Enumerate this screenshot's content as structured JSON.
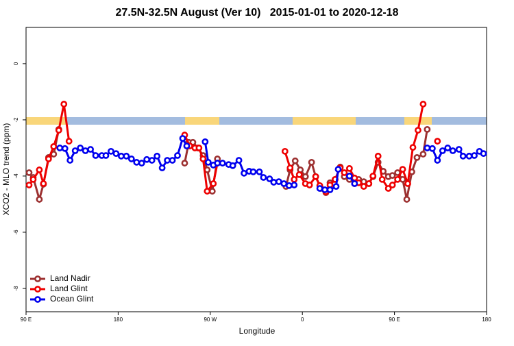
{
  "chart_data": {
    "type": "line",
    "title": "27.5N-32.5N August (Ver 10)   2015-01-01 to 2020-12-18",
    "x_label": "Longitude",
    "y_label": "XCO2 - MLO trend (ppm)",
    "xlim": [
      90,
      540
    ],
    "xticks": [
      {
        "value": 90,
        "label": "90 E"
      },
      180,
      {
        "value": 270,
        "label": "90 W"
      },
      {
        "value": 360,
        "label": "0"
      },
      {
        "value": 450,
        "label": "90 E"
      },
      {
        "value": 540,
        "label": "180"
      }
    ],
    "ylim": [
      -8.83,
      1.29
    ],
    "yticks": [
      -8,
      -6,
      -4,
      -2,
      0
    ],
    "legend": "bottom-left",
    "series": [
      {
        "name": "Land Nadir",
        "color": "#9c3030",
        "x": [
          93,
          97,
          103,
          107,
          112,
          117,
          122,
          null,
          245,
          249,
          253,
          258,
          263,
          267,
          272,
          277,
          null,
          344,
          348,
          353,
          358,
          363,
          369,
          373,
          378,
          383,
          387,
          392,
          397,
          401,
          406,
          411,
          415,
          420,
          425,
          429,
          434,
          439,
          444,
          448,
          453,
          458,
          462,
          467,
          472,
          478,
          482
        ],
        "values": [
          -3.88,
          -4.05,
          -4.83,
          -4.29,
          -3.34,
          -3.22,
          -2.34,
          null,
          -3.54,
          -2.8,
          -2.8,
          -3.0,
          -3.27,
          -3.78,
          -4.54,
          -3.39,
          null,
          -4.37,
          -3.78,
          -3.46,
          -3.78,
          -4.02,
          -3.51,
          -4.02,
          -4.44,
          -4.59,
          -4.24,
          -4.12,
          -3.68,
          -4.02,
          -4.12,
          -4.27,
          -4.12,
          -4.2,
          -4.27,
          -4.02,
          -3.51,
          -3.83,
          -4.02,
          -3.98,
          -3.88,
          -4.12,
          -4.83,
          -3.85,
          -3.34,
          -3.22,
          -2.34
        ]
      },
      {
        "name": "Land Glint",
        "color": "#ee0000",
        "x": [
          93,
          97,
          103,
          107,
          112,
          117,
          122,
          127,
          132,
          null,
          245,
          250,
          255,
          259,
          263,
          267,
          273,
          277,
          null,
          343,
          348,
          352,
          357,
          363,
          367,
          373,
          377,
          383,
          387,
          392,
          397,
          401,
          406,
          411,
          415,
          420,
          425,
          429,
          434,
          438,
          444,
          448,
          453,
          458,
          463,
          468,
          473,
          478,
          null,
          492
        ],
        "values": [
          -4.32,
          -4.12,
          -3.78,
          -4.27,
          -3.39,
          -2.95,
          -2.37,
          -1.44,
          -2.76,
          null,
          -2.54,
          -2.93,
          -3.0,
          -3.0,
          -3.39,
          -4.54,
          -4.27,
          -3.54,
          null,
          -3.12,
          -3.71,
          -4.12,
          -3.95,
          -4.27,
          -4.32,
          -4.02,
          -4.34,
          -4.56,
          -4.32,
          -4.12,
          -3.71,
          -3.88,
          -3.73,
          -4.07,
          -4.24,
          -4.37,
          -4.27,
          -4.0,
          -3.29,
          -4.12,
          -4.44,
          -4.32,
          -4.12,
          -3.76,
          -4.27,
          -2.98,
          -2.37,
          -1.44,
          null,
          -2.76
        ]
      },
      {
        "name": "Ocean Glint",
        "color": "#0000ee",
        "x": [
          123,
          128,
          133,
          138,
          143,
          148,
          153,
          158,
          164,
          168,
          173,
          178,
          183,
          188,
          193,
          198,
          203,
          208,
          213,
          218,
          223,
          228,
          233,
          238,
          243,
          247,
          null,
          265,
          268,
          273,
          277,
          282,
          288,
          292,
          298,
          303,
          308,
          312,
          318,
          322,
          328,
          332,
          337,
          342,
          347,
          352,
          null,
          377,
          382,
          387,
          393,
          395,
          null,
          406,
          411,
          null,
          482,
          487,
          492,
          497,
          502,
          507,
          513,
          517,
          523,
          528,
          533,
          537
        ],
        "values": [
          -3.0,
          -3.02,
          -3.44,
          -3.1,
          -3.0,
          -3.1,
          -3.05,
          -3.27,
          -3.27,
          -3.27,
          -3.12,
          -3.2,
          -3.29,
          -3.29,
          -3.39,
          -3.51,
          -3.54,
          -3.41,
          -3.44,
          -3.29,
          -3.71,
          -3.44,
          -3.44,
          -3.27,
          -2.66,
          -2.93,
          null,
          -2.78,
          -3.51,
          -3.61,
          -3.54,
          -3.54,
          -3.59,
          -3.63,
          -3.44,
          -3.9,
          -3.83,
          -3.85,
          -3.85,
          -4.05,
          -4.1,
          -4.22,
          -4.2,
          -4.27,
          -4.34,
          -4.32,
          null,
          -4.44,
          -4.49,
          -4.49,
          -4.37,
          -3.76,
          null,
          -4.0,
          -4.27,
          null,
          -3.0,
          -3.02,
          -3.44,
          -3.1,
          -3.0,
          -3.1,
          -3.05,
          -3.29,
          -3.29,
          -3.27,
          -3.12,
          -3.2
        ]
      }
    ]
  }
}
